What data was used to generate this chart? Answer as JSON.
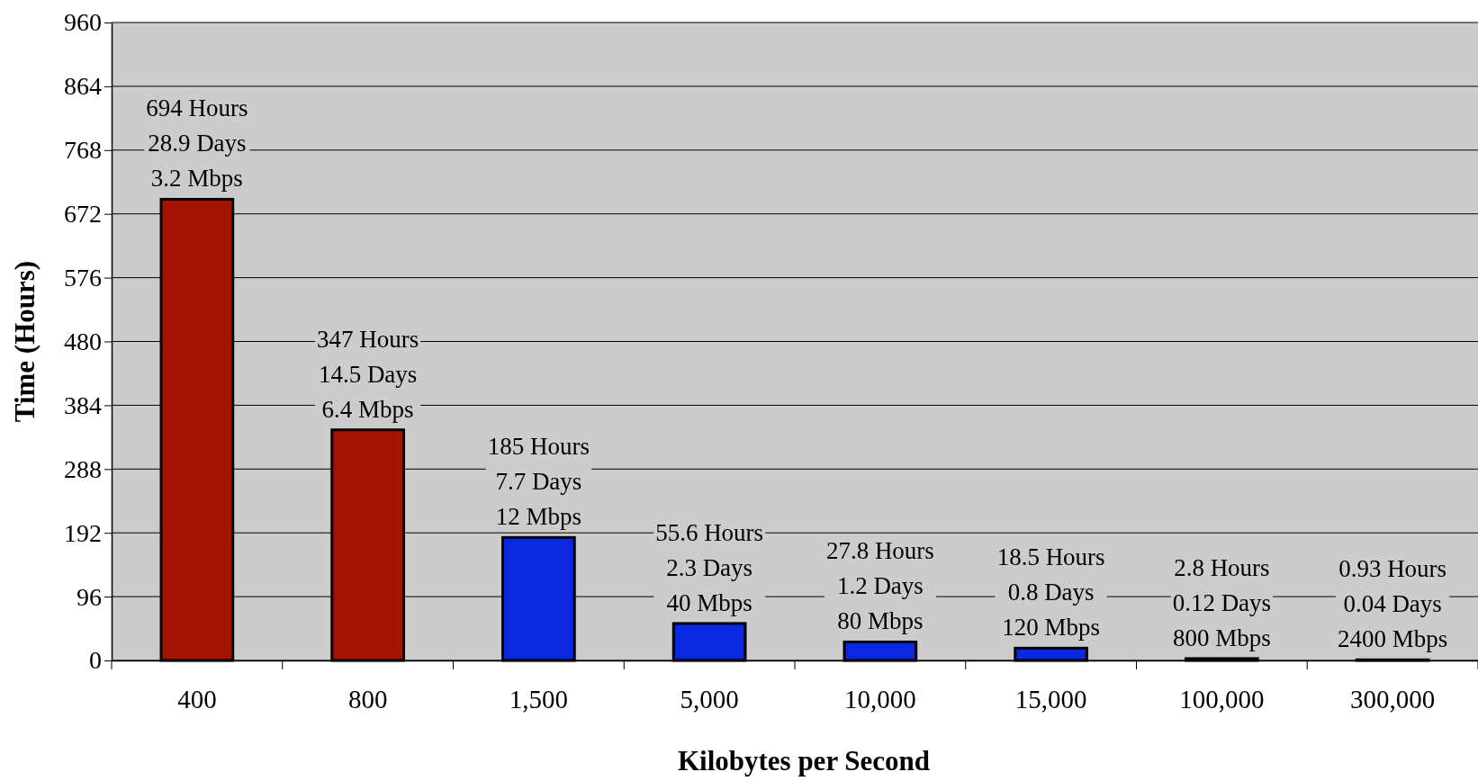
{
  "chart_data": {
    "type": "bar",
    "xlabel": "Kilobytes per Second",
    "ylabel": "Time (Hours)",
    "categories": [
      "400",
      "800",
      "1,500",
      "5,000",
      "10,000",
      "15,000",
      "100,000",
      "300,000"
    ],
    "values": [
      694,
      347,
      185,
      55.6,
      27.8,
      18.5,
      2.8,
      0.93
    ],
    "colors": [
      "#a31300",
      "#a31300",
      "#0a28e0",
      "#0a28e0",
      "#0a28e0",
      "#0a28e0",
      "#0a28e0",
      "#0a28e0"
    ],
    "value_labels": [
      "694 Hours\n28.9 Days\n3.2 Mbps",
      "347 Hours\n14.5 Days\n6.4 Mbps",
      "185 Hours\n7.7 Days\n12 Mbps",
      "55.6 Hours\n2.3 Days\n40 Mbps",
      "27.8 Hours\n1.2 Days\n80 Mbps",
      "18.5 Hours\n0.8 Days\n120 Mbps",
      "2.8 Hours\n0.12 Days\n800 Mbps",
      "0.93 Hours\n0.04 Days\n2400 Mbps"
    ],
    "ylim": [
      0,
      960
    ],
    "yticks": [
      0,
      96,
      192,
      288,
      384,
      480,
      576,
      672,
      768,
      864,
      960
    ],
    "grid": "y"
  }
}
